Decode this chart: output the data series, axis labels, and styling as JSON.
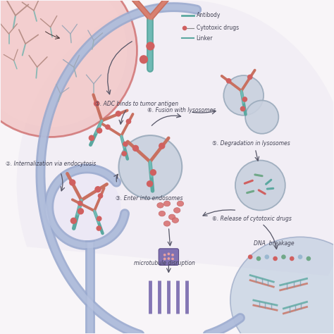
{
  "bg_color": "#f8f5f8",
  "cell_interior_color": "#f0ecf4",
  "cell_membrane_color": "#9aaacf",
  "cell_membrane_inner": "#b8c4e0",
  "tumor_cell_color": "#f0c0c0",
  "tumor_cell_edge": "#cc6666",
  "tumor_cell_interior": "#f5d0d0",
  "endosome_color": "#c8d0de",
  "endosome_edge": "#9aaabb",
  "dna_cell_color": "#b8c8dc",
  "dna_cell_edge": "#8899bb",
  "antibody_teal": "#5ba8a0",
  "antibody_teal2": "#70bab5",
  "antibody_salmon": "#c87060",
  "antibody_salmon2": "#d88070",
  "drug_red": "#d06060",
  "drug_green": "#70a888",
  "drug_teal": "#5ba8a0",
  "purple_drug": "#7060a8",
  "arrow_color": "#555566",
  "text_color": "#444455",
  "labels": {
    "antibody": "Antibody",
    "cytotoxic": "Cytotoxic drugs",
    "linker": "Linker",
    "step1": "①. ADC binds to tumor antigen",
    "step2": "②. Internalization via endocytosis",
    "step3": "③. Enter into endosomes",
    "step4": "④. Fusion with lysosomes",
    "step5": "⑤. Degradation in lysosomes",
    "step6": "⑥. Release of cytotoxic drugs",
    "microtubule": "microtubule disruption",
    "dna": "DNA  breakage"
  }
}
